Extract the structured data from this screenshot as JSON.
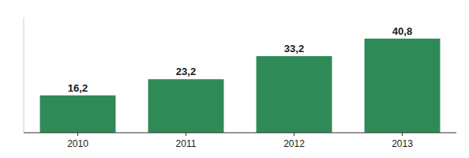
{
  "chart_data": {
    "type": "bar",
    "categories": [
      "2010",
      "2011",
      "2012",
      "2013"
    ],
    "values": [
      16.2,
      23.2,
      33.2,
      40.8
    ],
    "value_labels": [
      "16,2",
      "23,2",
      "33,2",
      "40,8"
    ],
    "color": "#2e8b57",
    "ylim": [
      0,
      50
    ],
    "data_labels": true,
    "tick_labels": "x",
    "grid": false
  }
}
